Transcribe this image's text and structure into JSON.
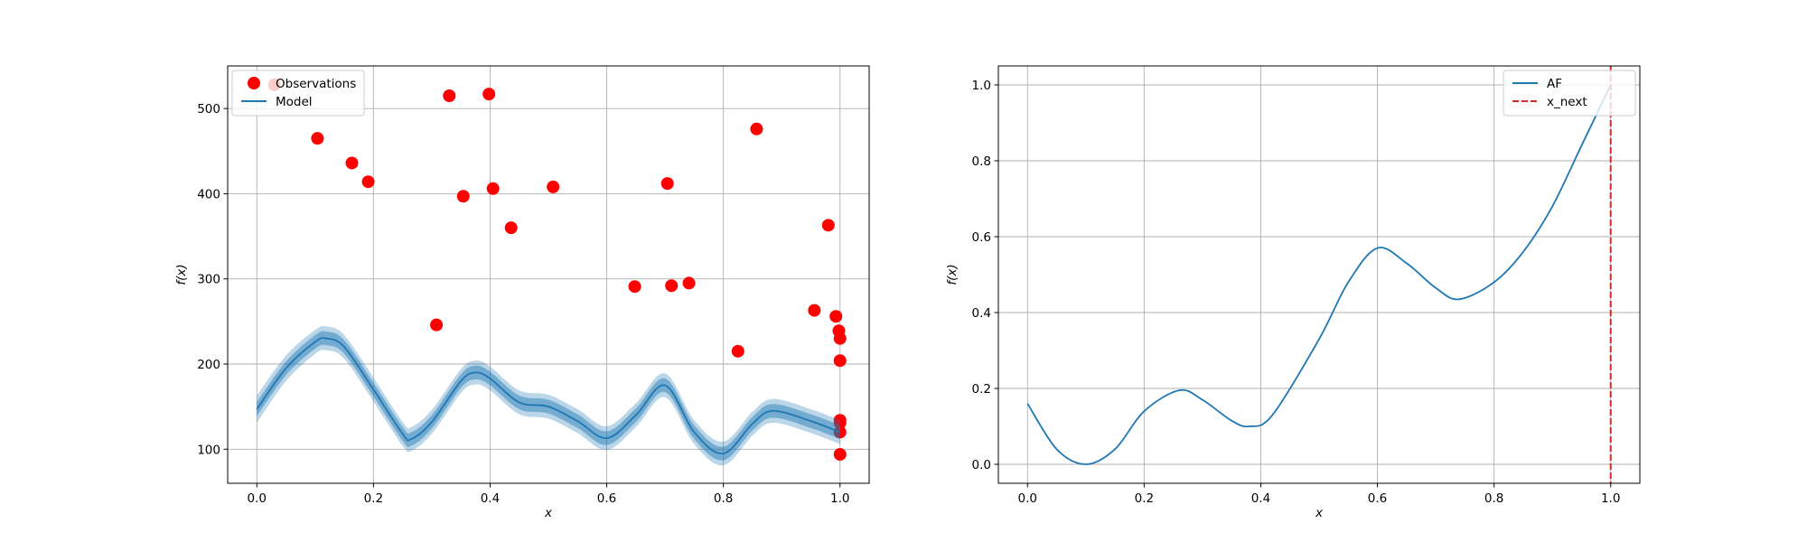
{
  "chart_data": [
    {
      "type": "scatter",
      "xlabel": "x",
      "ylabel": "f(x)",
      "xlim": [
        -0.05,
        1.05
      ],
      "ylim": [
        60,
        550
      ],
      "xticks": [
        0.0,
        0.2,
        0.4,
        0.6,
        0.8,
        1.0
      ],
      "xtick_labels": [
        "0.0",
        "0.2",
        "0.4",
        "0.6",
        "0.8",
        "1.0"
      ],
      "yticks": [
        100,
        200,
        300,
        400,
        500
      ],
      "ytick_labels": [
        "100",
        "200",
        "300",
        "400",
        "500"
      ],
      "grid": true,
      "legend_position": "top-left",
      "series": [
        {
          "name": "Observations",
          "kind": "scatter",
          "color": "#ff0000",
          "x": [
            0.03,
            0.104,
            0.163,
            0.191,
            0.308,
            0.33,
            0.354,
            0.398,
            0.405,
            0.436,
            0.508,
            0.648,
            0.704,
            0.711,
            0.741,
            0.825,
            0.857,
            0.956,
            0.98,
            0.993,
            0.998,
            1.0,
            1.0,
            1.0,
            1.0,
            1.0,
            1.0
          ],
          "y": [
            528,
            465,
            436,
            414,
            246,
            515,
            397,
            517,
            406,
            360,
            408,
            291,
            412,
            292,
            295,
            215,
            476,
            263,
            363,
            256,
            239,
            230,
            204,
            134,
            131,
            120,
            94
          ]
        },
        {
          "name": "Model",
          "kind": "line",
          "color": "#1f77b4",
          "x": [
            0.0,
            0.05,
            0.1,
            0.12,
            0.15,
            0.2,
            0.25,
            0.265,
            0.3,
            0.35,
            0.375,
            0.4,
            0.45,
            0.5,
            0.55,
            0.6,
            0.65,
            0.7,
            0.75,
            0.8,
            0.85,
            0.885,
            0.95,
            1.0
          ],
          "y": [
            147,
            195,
            226,
            230,
            220,
            170,
            118,
            112,
            132,
            180,
            190,
            183,
            155,
            150,
            133,
            113,
            140,
            175,
            120,
            95,
            130,
            145,
            133,
            120
          ],
          "band_inner": [
            8,
            8,
            8,
            8,
            8,
            8,
            8,
            8,
            8,
            8,
            8,
            8,
            8,
            8,
            8,
            8,
            8,
            8,
            8,
            8,
            8,
            8,
            8,
            8
          ],
          "band_outer": [
            16,
            15,
            14,
            14,
            14,
            14,
            14,
            14,
            14,
            14,
            14,
            14,
            14,
            14,
            14,
            14,
            14,
            14,
            14,
            14,
            14,
            14,
            14,
            14
          ]
        }
      ]
    },
    {
      "type": "line",
      "xlabel": "x",
      "ylabel": "f(x)",
      "xlim": [
        -0.05,
        1.05
      ],
      "ylim": [
        -0.05,
        1.05
      ],
      "xticks": [
        0.0,
        0.2,
        0.4,
        0.6,
        0.8,
        1.0
      ],
      "xtick_labels": [
        "0.0",
        "0.2",
        "0.4",
        "0.6",
        "0.8",
        "1.0"
      ],
      "yticks": [
        0.0,
        0.2,
        0.4,
        0.6,
        0.8,
        1.0
      ],
      "ytick_labels": [
        "0.0",
        "0.2",
        "0.4",
        "0.6",
        "0.8",
        "1.0"
      ],
      "grid": true,
      "legend_position": "top-right",
      "series": [
        {
          "name": "AF",
          "kind": "line",
          "color": "#1f77b4",
          "x": [
            0.0,
            0.05,
            0.1,
            0.15,
            0.2,
            0.26,
            0.3,
            0.35,
            0.38,
            0.42,
            0.5,
            0.55,
            0.6,
            0.65,
            0.7,
            0.74,
            0.8,
            0.85,
            0.9,
            0.95,
            1.0
          ],
          "y": [
            0.16,
            0.04,
            0.0,
            0.04,
            0.14,
            0.195,
            0.17,
            0.115,
            0.1,
            0.13,
            0.33,
            0.48,
            0.57,
            0.53,
            0.465,
            0.435,
            0.48,
            0.56,
            0.68,
            0.84,
            1.0
          ]
        },
        {
          "name": "x_next",
          "kind": "vline",
          "color": "#d62728",
          "linestyle": "dashed",
          "x": 1.0
        }
      ]
    }
  ]
}
